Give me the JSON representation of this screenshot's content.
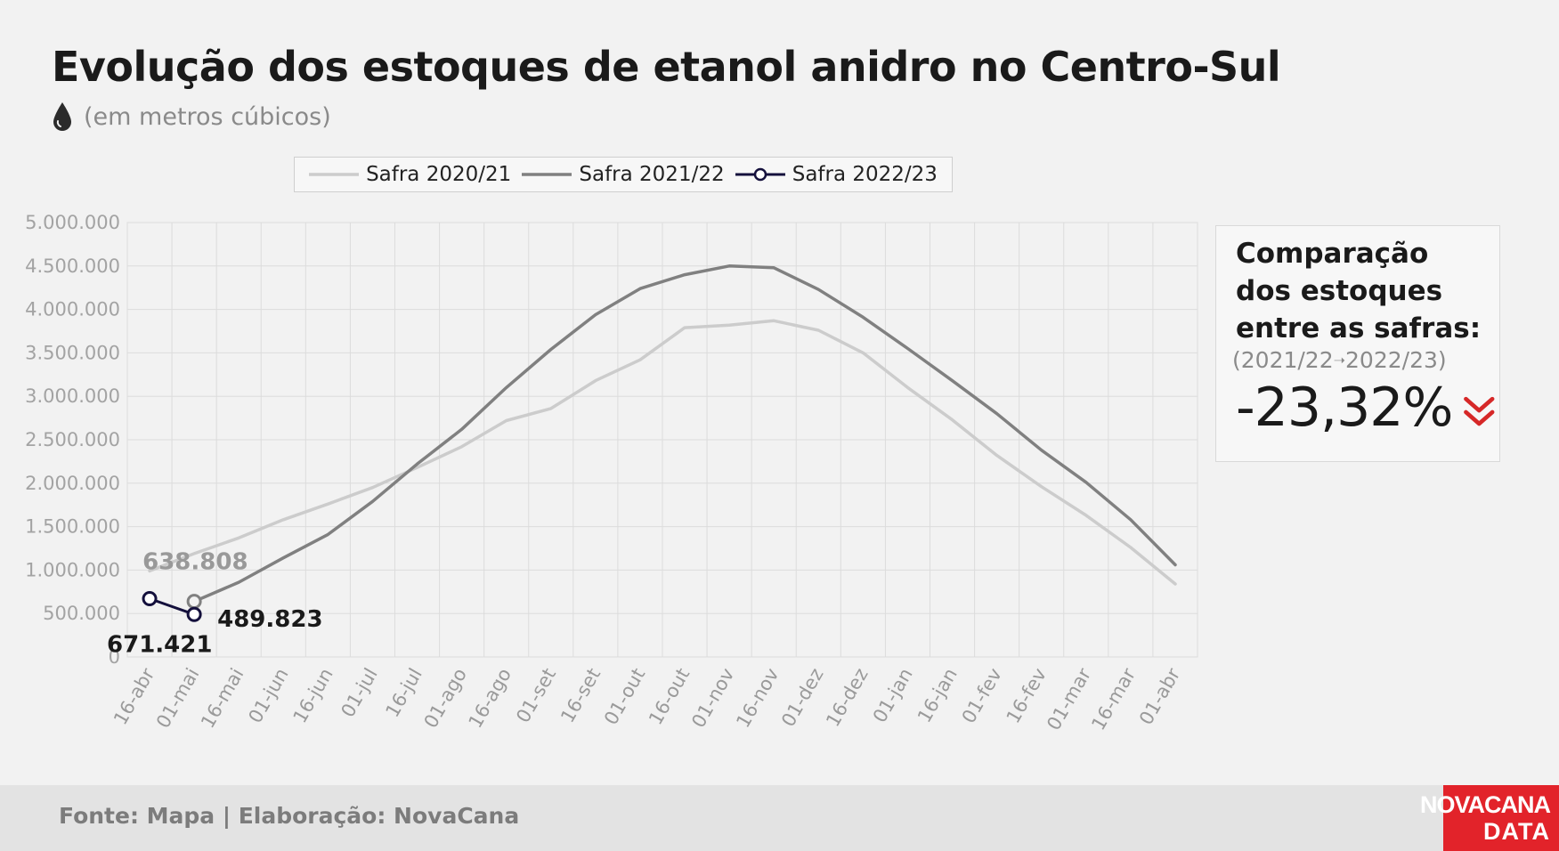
{
  "title": "Evolução dos estoques de etanol anidro no Centro-Sul",
  "subtitle": "(em metros cúbicos)",
  "subtitle_icon": "drop-icon",
  "legend": [
    {
      "label": "Safra 2020/21",
      "color": "#cccccc"
    },
    {
      "label": "Safra 2021/22",
      "color": "#808080"
    },
    {
      "label": "Safra 2022/23",
      "color": "#14103c"
    }
  ],
  "chart_data": {
    "type": "line",
    "title": "Evolução dos estoques de etanol anidro no Centro-Sul",
    "ylabel": "(em metros cúbicos)",
    "ylim": [
      0,
      5000000
    ],
    "yticks": [
      0,
      500000,
      1000000,
      1500000,
      2000000,
      2500000,
      3000000,
      3500000,
      4000000,
      4500000,
      5000000
    ],
    "ytick_labels": [
      "0",
      "500.000",
      "1.000.000",
      "1.500.000",
      "2.000.000",
      "2.500.000",
      "3.000.000",
      "3.500.000",
      "4.000.000",
      "4.500.000",
      "5.000.000"
    ],
    "categories": [
      "16-abr",
      "01-mai",
      "16-mai",
      "01-jun",
      "16-jun",
      "01-jul",
      "16-jul",
      "01-ago",
      "16-ago",
      "01-set",
      "16-set",
      "01-out",
      "16-out",
      "01-nov",
      "16-nov",
      "01-dez",
      "16-dez",
      "01-jan",
      "16-jan",
      "01-fev",
      "16-fev",
      "01-mar",
      "16-mar",
      "01-abr"
    ],
    "grid": true,
    "legend_position": "top",
    "series": [
      {
        "name": "Safra 2020/21",
        "color": "#cccccc",
        "width": 3.5,
        "markers": false,
        "values": [
          990000,
          1190000,
          1370000,
          1580000,
          1760000,
          1950000,
          2180000,
          2420000,
          2720000,
          2860000,
          3180000,
          3420000,
          3790000,
          3820000,
          3870000,
          3760000,
          3500000,
          3100000,
          2730000,
          2320000,
          1960000,
          1630000,
          1260000,
          840000
        ]
      },
      {
        "name": "Safra 2021/22",
        "color": "#808080",
        "width": 3.5,
        "markers": false,
        "values": null,
        "values_from_index": 1,
        "values_list": [
          638808,
          860000,
          1140000,
          1410000,
          1790000,
          2220000,
          2620000,
          3100000,
          3540000,
          3940000,
          4240000,
          4400000,
          4500000,
          4480000,
          4230000,
          3910000,
          3550000,
          3180000,
          2800000,
          2380000,
          2010000,
          1580000,
          1060000
        ]
      },
      {
        "name": "Safra 2022/23",
        "color": "#14103c",
        "width": 3,
        "markers": true,
        "values_list": [
          671421,
          489823
        ],
        "values_from_index": 0
      }
    ],
    "annotations": [
      {
        "text": "638.808",
        "category": "01-mai",
        "value": 638808,
        "color": "#999999"
      },
      {
        "text": "489.823",
        "category": "01-mai",
        "value": 489823,
        "color": "#1a1a1a"
      },
      {
        "text": "671.421",
        "category": "16-abr",
        "value": 671421,
        "color": "#1a1a1a"
      }
    ]
  },
  "card": {
    "title": "Comparação dos estoques entre as safras:",
    "compare_from": "(2021/22",
    "compare_arrow": "➝",
    "compare_to": "2022/23)",
    "value": "-23,32%",
    "trend_icon": "double-chevron-down-icon",
    "trend_color": "#d62828"
  },
  "footer": {
    "source": "Fonte: Mapa | Elaboração: NovaCana",
    "logo_line1": "NOVACANA",
    "logo_line2": "DATA",
    "logo_bg": "#e2232a"
  }
}
